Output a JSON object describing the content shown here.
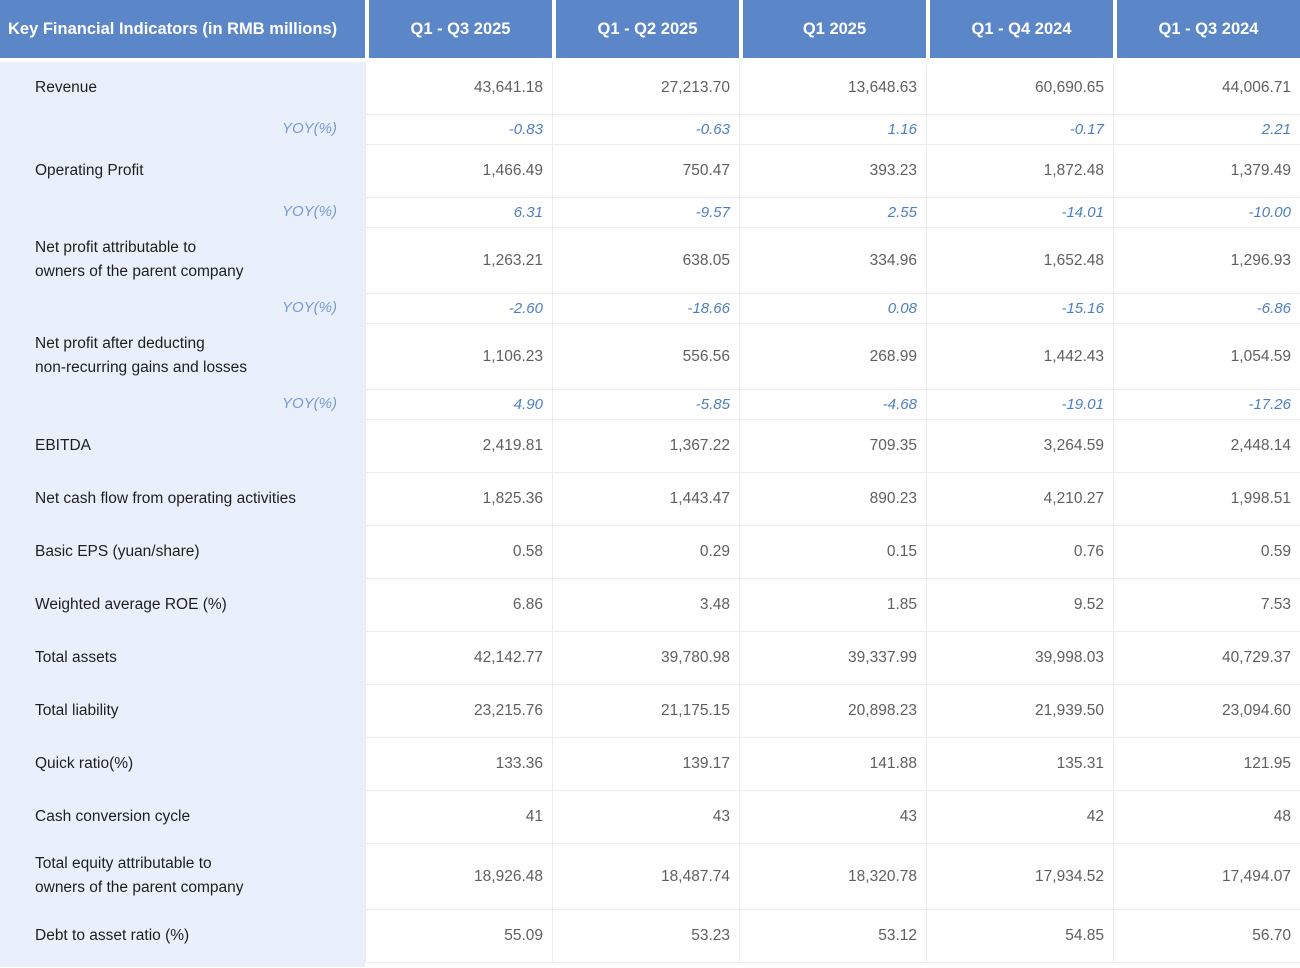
{
  "table": {
    "title": "Key Financial Indicators (in RMB millions)",
    "columns": [
      "Q1 - Q3 2025",
      "Q1 - Q2 2025",
      "Q1 2025",
      "Q1 - Q4 2024",
      "Q1 - Q3 2024"
    ],
    "rows": [
      {
        "label": "Revenue",
        "type": "metric",
        "values": [
          "43,641.18",
          "27,213.70",
          "13,648.63",
          "60,690.65",
          "44,006.71"
        ]
      },
      {
        "label": "YOY(%)",
        "type": "yoy",
        "values": [
          "-0.83",
          "-0.63",
          "1.16",
          "-0.17",
          "2.21"
        ]
      },
      {
        "label": "Operating Profit",
        "type": "metric",
        "values": [
          "1,466.49",
          "750.47",
          "393.23",
          "1,872.48",
          "1,379.49"
        ]
      },
      {
        "label": "YOY(%)",
        "type": "yoy",
        "values": [
          "6.31",
          "-9.57",
          "2.55",
          "-14.01",
          "-10.00"
        ]
      },
      {
        "label": "Net profit attributable to\nowners of the parent company",
        "type": "metric-tall",
        "values": [
          "1,263.21",
          "638.05",
          "334.96",
          "1,652.48",
          "1,296.93"
        ]
      },
      {
        "label": "YOY(%)",
        "type": "yoy",
        "values": [
          "-2.60",
          "-18.66",
          "0.08",
          "-15.16",
          "-6.86"
        ]
      },
      {
        "label": "Net profit after deducting\nnon-recurring gains and losses",
        "type": "metric-tall",
        "values": [
          "1,106.23",
          "556.56",
          "268.99",
          "1,442.43",
          "1,054.59"
        ]
      },
      {
        "label": "YOY(%)",
        "type": "yoy",
        "values": [
          "4.90",
          "-5.85",
          "-4.68",
          "-19.01",
          "-17.26"
        ]
      },
      {
        "label": "EBITDA",
        "type": "metric",
        "values": [
          "2,419.81",
          "1,367.22",
          "709.35",
          "3,264.59",
          "2,448.14"
        ]
      },
      {
        "label": "Net cash flow from operating activities",
        "type": "metric",
        "values": [
          "1,825.36",
          "1,443.47",
          "890.23",
          "4,210.27",
          "1,998.51"
        ]
      },
      {
        "label": "Basic EPS (yuan/share)",
        "type": "metric",
        "values": [
          "0.58",
          "0.29",
          "0.15",
          "0.76",
          "0.59"
        ]
      },
      {
        "label": "Weighted average ROE (%)",
        "type": "metric",
        "values": [
          "6.86",
          "3.48",
          "1.85",
          "9.52",
          "7.53"
        ]
      },
      {
        "label": "Total assets",
        "type": "metric",
        "values": [
          "42,142.77",
          "39,780.98",
          "39,337.99",
          "39,998.03",
          "40,729.37"
        ]
      },
      {
        "label": "Total liability",
        "type": "metric",
        "values": [
          "23,215.76",
          "21,175.15",
          "20,898.23",
          "21,939.50",
          "23,094.60"
        ]
      },
      {
        "label": "Quick ratio(%)",
        "type": "metric",
        "values": [
          "133.36",
          "139.17",
          "141.88",
          "135.31",
          "121.95"
        ]
      },
      {
        "label": "Cash conversion cycle",
        "type": "metric",
        "values": [
          "41",
          "43",
          "43",
          "42",
          "48"
        ]
      },
      {
        "label": "Total equity attributable to\nowners of the parent company",
        "type": "metric-tall",
        "values": [
          "18,926.48",
          "18,487.74",
          "18,320.78",
          "17,934.52",
          "17,494.07"
        ]
      },
      {
        "label": "Debt to asset ratio (%)",
        "type": "metric",
        "values": [
          "55.09",
          "53.23",
          "53.12",
          "54.85",
          "56.70"
        ]
      }
    ]
  },
  "colors": {
    "header_bg": "#5b86c8",
    "header_text": "#ffffff",
    "label_column_bg": "#e9f0fb",
    "label_text": "#1f1f1f",
    "value_text": "#5f5f5f",
    "yoy_value_text": "#4d7ec5",
    "yoy_label_text": "#7b99d6",
    "gridline": "#ececec"
  }
}
